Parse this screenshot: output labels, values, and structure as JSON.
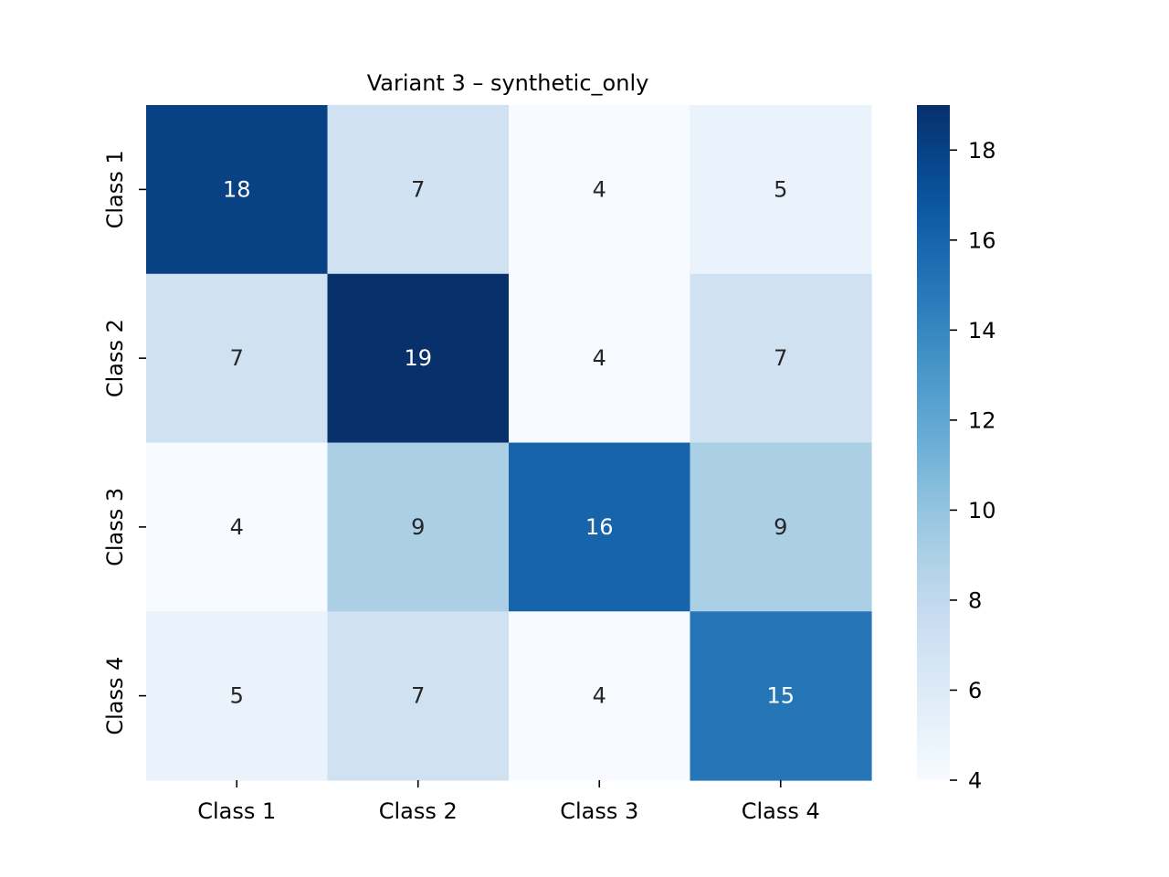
{
  "chart_data": {
    "type": "heatmap",
    "title": "Variant 3 – synthetic_only",
    "xlabel": "",
    "ylabel": "",
    "x_categories": [
      "Class 1",
      "Class 2",
      "Class 3",
      "Class 4"
    ],
    "y_categories": [
      "Class 1",
      "Class 2",
      "Class 3",
      "Class 4"
    ],
    "values": [
      [
        18,
        7,
        4,
        5
      ],
      [
        7,
        19,
        4,
        7
      ],
      [
        4,
        9,
        16,
        9
      ],
      [
        5,
        7,
        4,
        15
      ]
    ],
    "colormap": "Blues",
    "colorbar": {
      "range": [
        4,
        19
      ],
      "ticks": [
        4,
        6,
        8,
        10,
        12,
        14,
        16,
        18
      ]
    },
    "annotations": true
  }
}
